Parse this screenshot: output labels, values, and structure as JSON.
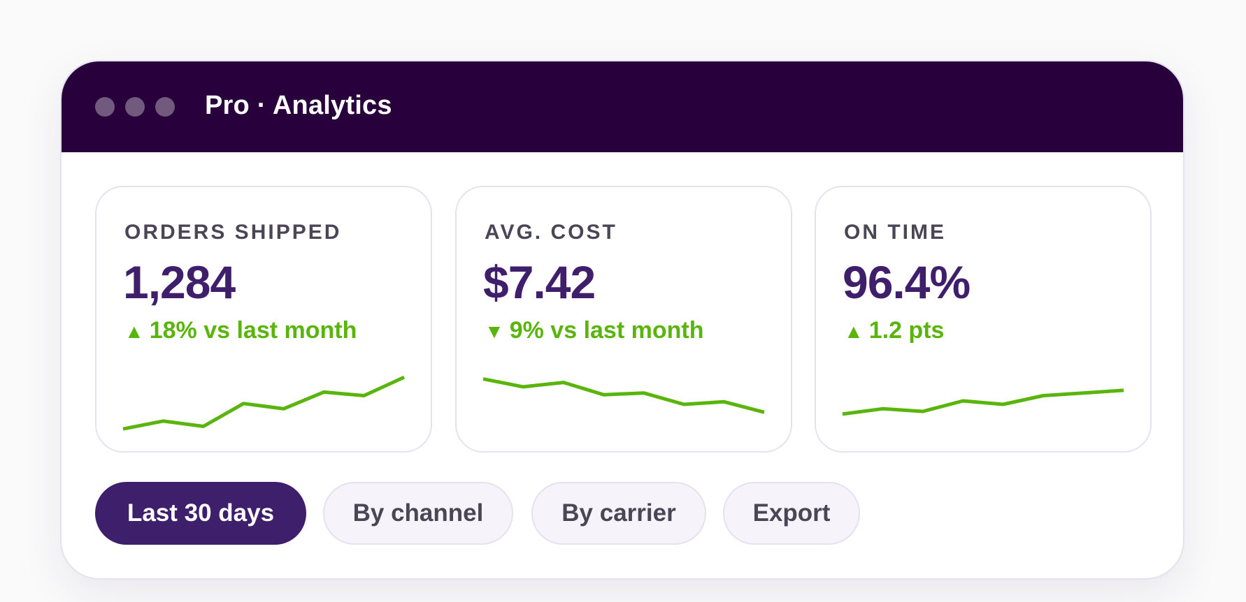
{
  "window": {
    "title": "Pro · Analytics"
  },
  "colors": {
    "titlebar": "#28003c",
    "accent": "#3f1f6b",
    "positive": "#59b50b",
    "label": "#4a4656"
  },
  "metrics": [
    {
      "label": "ORDERS SHIPPED",
      "value": "1,284",
      "trend_icon": "triangle-up-icon",
      "arrow": "▲",
      "delta": "18% vs last month",
      "sparkline": [
        3,
        12,
        6,
        32,
        26,
        45,
        41,
        62
      ]
    },
    {
      "label": "AVG. COST",
      "value": "$7.42",
      "trend_icon": "triangle-down-icon",
      "arrow": "▼",
      "delta": "9% vs last month",
      "sparkline": [
        60,
        51,
        56,
        42,
        44,
        31,
        34,
        22
      ]
    },
    {
      "label": "ON TIME",
      "value": "96.4%",
      "trend_icon": "triangle-up-icon",
      "arrow": "▲",
      "delta": "1.2 pts",
      "sparkline": [
        20,
        26,
        23,
        35,
        31,
        41,
        44,
        47
      ]
    }
  ],
  "filters": [
    {
      "label": "Last 30 days",
      "active": true
    },
    {
      "label": "By channel",
      "active": false
    },
    {
      "label": "By carrier",
      "active": false
    },
    {
      "label": "Export",
      "active": false
    }
  ]
}
